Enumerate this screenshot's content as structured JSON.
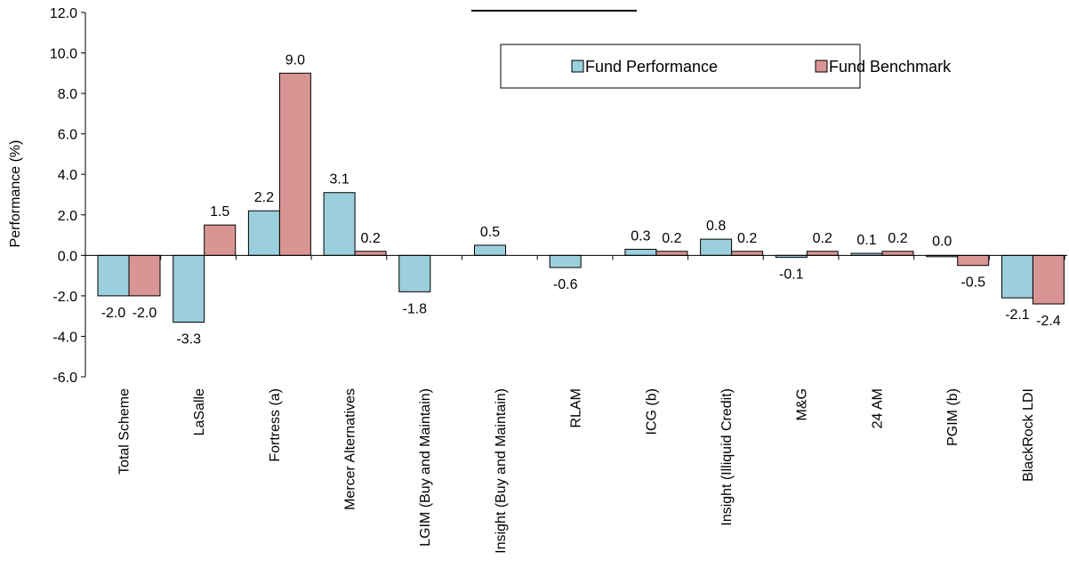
{
  "chart_data": {
    "type": "bar",
    "title": "",
    "xlabel": "",
    "ylabel": "Performance (%)",
    "ylim": [
      -6,
      12
    ],
    "ytick_step": 2,
    "ytick_labels": [
      "-6.0",
      "-4.0",
      "-2.0",
      "0.0",
      "2.0",
      "4.0",
      "6.0",
      "8.0",
      "10.0",
      "12.0"
    ],
    "grid": false,
    "legend_position": "top-right",
    "categories": [
      "Total Scheme",
      "LaSalle",
      "Fortress (a)",
      "Mercer Alternatives",
      "LGIM (Buy and Maintain)",
      "Insight (Buy and Maintain)",
      "RLAM",
      "ICG (b)",
      "Insight (Illiquid Credit)",
      "M&G",
      "24 AM",
      "PGIM (b)",
      "BlackRock LDI"
    ],
    "series": [
      {
        "name": "Fund Performance",
        "color": "#9BCFDE",
        "values": [
          -2.0,
          -3.3,
          2.2,
          3.1,
          -1.8,
          0.5,
          -0.6,
          0.3,
          0.8,
          -0.1,
          0.1,
          0.0,
          -2.1
        ],
        "labels": [
          "-2.0",
          "-3.3",
          "2.2",
          "3.1",
          "-1.8",
          "0.5",
          "-0.6",
          "0.3",
          "0.8",
          "-0.1",
          "0.1",
          "0.0",
          "-2.1"
        ]
      },
      {
        "name": "Fund Benchmark",
        "color": "#D99594",
        "values": [
          -2.0,
          1.5,
          9.0,
          0.2,
          null,
          null,
          null,
          0.2,
          0.2,
          0.2,
          0.2,
          -0.5,
          -2.4
        ],
        "labels": [
          "-2.0",
          "1.5",
          "9.0",
          "0.2",
          null,
          null,
          null,
          "0.2",
          "0.2",
          "0.2",
          "0.2",
          "-0.5",
          "-2.4"
        ]
      }
    ]
  }
}
